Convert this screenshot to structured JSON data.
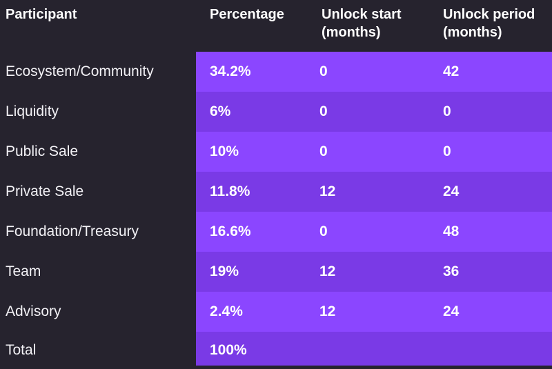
{
  "headers": {
    "participant": "Participant",
    "percentage": "Percentage",
    "unlock_start": "Unlock start\n(months)",
    "unlock_period": "Unlock period\n(months)"
  },
  "rows": [
    {
      "participant": "Ecosystem/Community",
      "percentage": "34.2%",
      "unlock_start": "0",
      "unlock_period": "42"
    },
    {
      "participant": "Liquidity",
      "percentage": "6%",
      "unlock_start": "0",
      "unlock_period": "0"
    },
    {
      "participant": "Public Sale",
      "percentage": "10%",
      "unlock_start": "0",
      "unlock_period": "0"
    },
    {
      "participant": "Private Sale",
      "percentage": "11.8%",
      "unlock_start": "12",
      "unlock_period": "24"
    },
    {
      "participant": "Foundation/Treasury",
      "percentage": "16.6%",
      "unlock_start": "0",
      "unlock_period": "48"
    },
    {
      "participant": "Team",
      "percentage": "19%",
      "unlock_start": "12",
      "unlock_period": "36"
    },
    {
      "participant": "Advisory",
      "percentage": "2.4%",
      "unlock_start": "12",
      "unlock_period": "24"
    },
    {
      "participant": "Total",
      "percentage": "100%",
      "unlock_start": "",
      "unlock_period": ""
    }
  ],
  "colors": {
    "background": "#26232e",
    "row_purple_light": "#8b46ff",
    "row_purple_dark": "#7a3ae6",
    "text": "#ffffff"
  }
}
